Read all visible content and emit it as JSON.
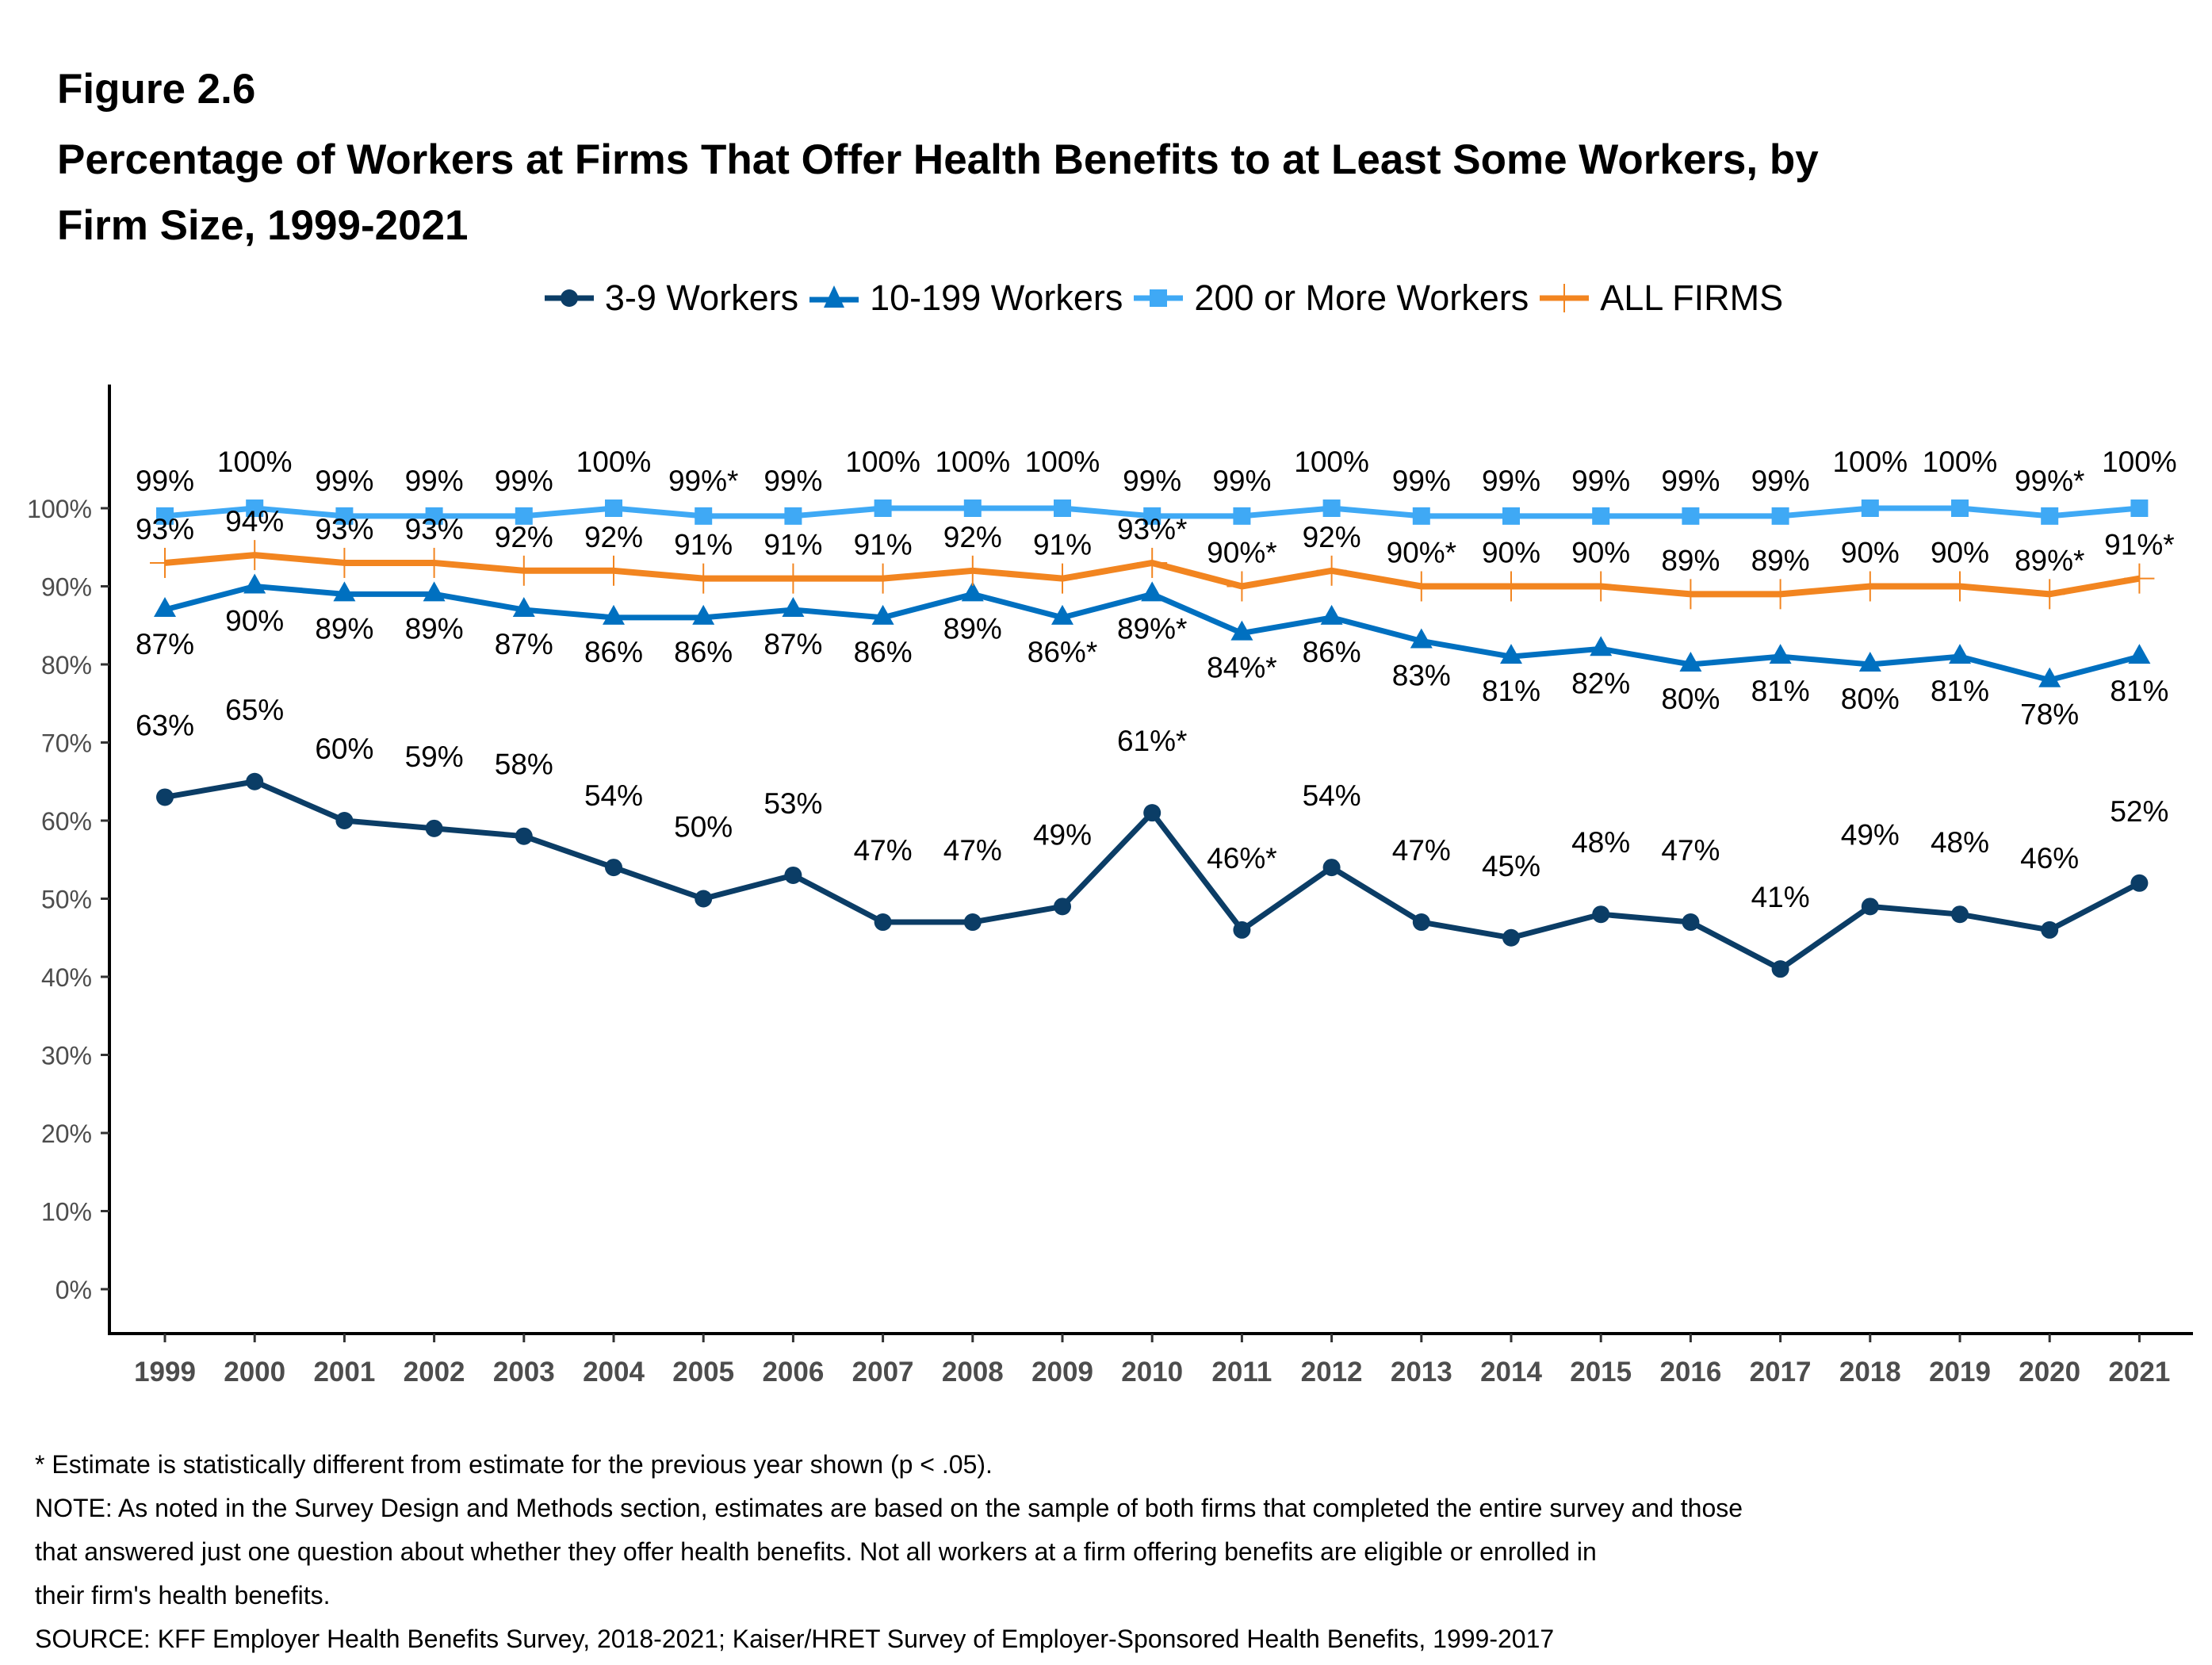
{
  "figure_label": "Figure 2.6",
  "title_lines": [
    "Percentage of Workers at Firms That Offer Health Benefits to at Least Some Workers, by",
    "Firm Size, 1999-2021"
  ],
  "footer": {
    "lines": [
      "* Estimate is statistically different from estimate for the previous year shown (p < .05).",
      "NOTE: As noted in the Survey Design and Methods section, estimates are based on the sample of both firms that completed the entire survey and those",
      "that answered just one question about whether they offer health benefits. Not all workers at a firm offering benefits are eligible or enrolled in",
      "their firm's health benefits.",
      "SOURCE: KFF Employer Health Benefits Survey, 2018-2021; Kaiser/HRET Survey of Employer-Sponsored Health Benefits, 1999-2017"
    ]
  },
  "chart_data": {
    "type": "line",
    "title": "Percentage of Workers at Firms That Offer Health Benefits to at Least Some Workers, by Firm Size, 1999-2021",
    "xlabel": "",
    "ylabel": "",
    "x": [
      "1999",
      "2000",
      "2001",
      "2002",
      "2003",
      "2004",
      "2005",
      "2006",
      "2007",
      "2008",
      "2009",
      "2010",
      "2011",
      "2012",
      "2013",
      "2014",
      "2015",
      "2016",
      "2017",
      "2018",
      "2019",
      "2020",
      "2021"
    ],
    "ylim": [
      0,
      100
    ],
    "yticks": [
      0,
      10,
      20,
      30,
      40,
      50,
      60,
      70,
      80,
      90,
      100
    ],
    "ytick_labels": [
      "0%",
      "10%",
      "20%",
      "30%",
      "40%",
      "50%",
      "60%",
      "70%",
      "80%",
      "90%",
      "100%"
    ],
    "grid": false,
    "legend_position": "top",
    "series": [
      {
        "name": "3-9 Workers",
        "color": "#0b3d66",
        "marker": "circle",
        "label_position": "above",
        "values": [
          63,
          65,
          60,
          59,
          58,
          54,
          50,
          53,
          47,
          47,
          49,
          61,
          46,
          54,
          47,
          45,
          48,
          47,
          41,
          49,
          48,
          46,
          52
        ],
        "labels": [
          "63%",
          "65%",
          "60%",
          "59%",
          "58%",
          "54%",
          "50%",
          "53%",
          "47%",
          "47%",
          "49%",
          "61%*",
          "46%*",
          "54%",
          "47%",
          "45%",
          "48%",
          "47%",
          "41%",
          "49%",
          "48%",
          "46%",
          "52%"
        ]
      },
      {
        "name": "10-199 Workers",
        "color": "#0070c0",
        "marker": "triangle",
        "label_position": "below",
        "values": [
          87,
          90,
          89,
          89,
          87,
          86,
          86,
          87,
          86,
          89,
          86,
          89,
          84,
          86,
          83,
          81,
          82,
          80,
          81,
          80,
          81,
          78,
          81
        ],
        "labels": [
          "87%",
          "90%",
          "89%",
          "89%",
          "87%",
          "86%",
          "86%",
          "87%",
          "86%",
          "89%",
          "86%*",
          "89%*",
          "84%*",
          "86%",
          "83%",
          "81%",
          "82%",
          "80%",
          "81%",
          "80%",
          "81%",
          "78%",
          "81%"
        ]
      },
      {
        "name": "200 or More Workers",
        "color": "#3fa9f5",
        "marker": "square",
        "label_position": "above",
        "values": [
          99,
          100,
          99,
          99,
          99,
          100,
          99,
          99,
          100,
          100,
          100,
          99,
          99,
          100,
          99,
          99,
          99,
          99,
          99,
          100,
          100,
          99,
          100
        ],
        "labels": [
          "99%",
          "100%",
          "99%",
          "99%",
          "99%",
          "100%",
          "99%*",
          "99%",
          "100%",
          "100%",
          "100%",
          "99%",
          "99%",
          "100%",
          "99%",
          "99%",
          "99%",
          "99%",
          "99%",
          "100%",
          "100%",
          "99%*",
          "100%"
        ]
      },
      {
        "name": "ALL FIRMS",
        "color": "#f28520",
        "marker": "plus",
        "label_position": "above",
        "values": [
          93,
          94,
          93,
          93,
          92,
          92,
          91,
          91,
          91,
          92,
          91,
          93,
          90,
          92,
          90,
          90,
          90,
          89,
          89,
          90,
          90,
          89,
          91
        ],
        "labels": [
          "93%",
          "94%",
          "93%",
          "93%",
          "92%",
          "92%",
          "91%",
          "91%",
          "91%",
          "92%",
          "91%",
          "93%*",
          "90%*",
          "92%",
          "90%*",
          "90%",
          "90%",
          "89%",
          "89%",
          "90%",
          "90%",
          "89%*",
          "91%*"
        ]
      }
    ]
  }
}
